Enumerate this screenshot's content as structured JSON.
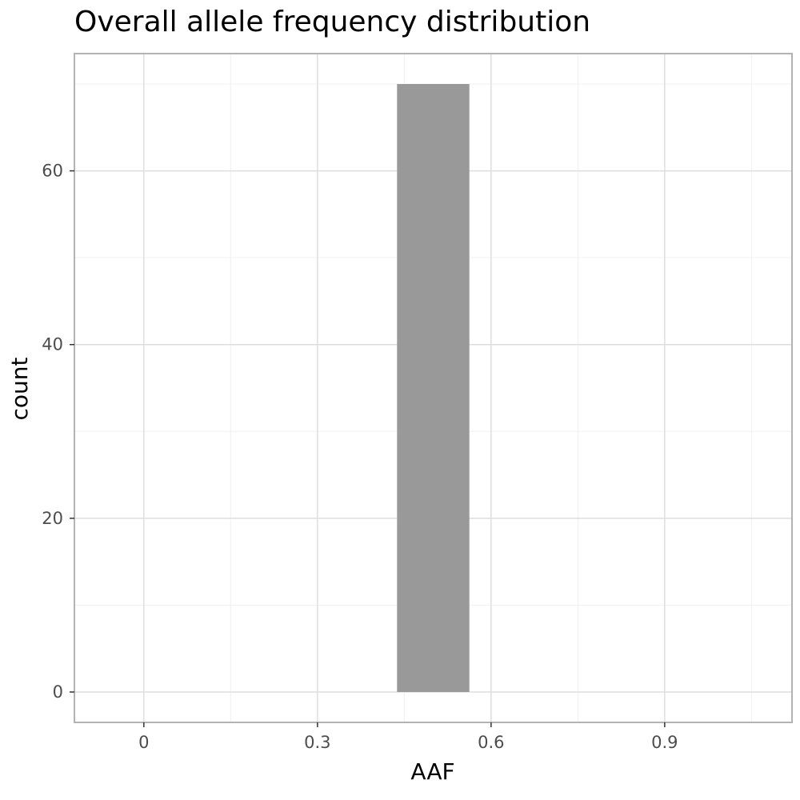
{
  "chart_data": {
    "type": "bar",
    "title": "Overall allele frequency distribution",
    "xlabel": "AAF",
    "ylabel": "count",
    "xlim": [
      -0.12,
      1.12
    ],
    "ylim": [
      -3.5,
      73.5
    ],
    "x_ticks": [
      0,
      0.3,
      0.6,
      0.9
    ],
    "x_tick_labels": [
      "0",
      "0.3",
      "0.6",
      "0.9"
    ],
    "x_minor_ticks": [
      0.15,
      0.45,
      0.75,
      1.05
    ],
    "y_ticks": [
      0,
      20,
      40,
      60
    ],
    "y_tick_labels": [
      "0",
      "20",
      "40",
      "60"
    ],
    "y_minor_ticks": [
      10,
      30,
      50,
      70
    ],
    "bins": [
      {
        "x_start": 0.4375,
        "x_end": 0.5625,
        "count": 70
      }
    ],
    "grid": true,
    "legend": "none",
    "colors": {
      "bar": "#999999",
      "panel_border": "#b3b3b3",
      "major_grid": "#dedede",
      "minor_grid": "#f0f0f0",
      "tick_label": "#4d4d4d"
    }
  }
}
